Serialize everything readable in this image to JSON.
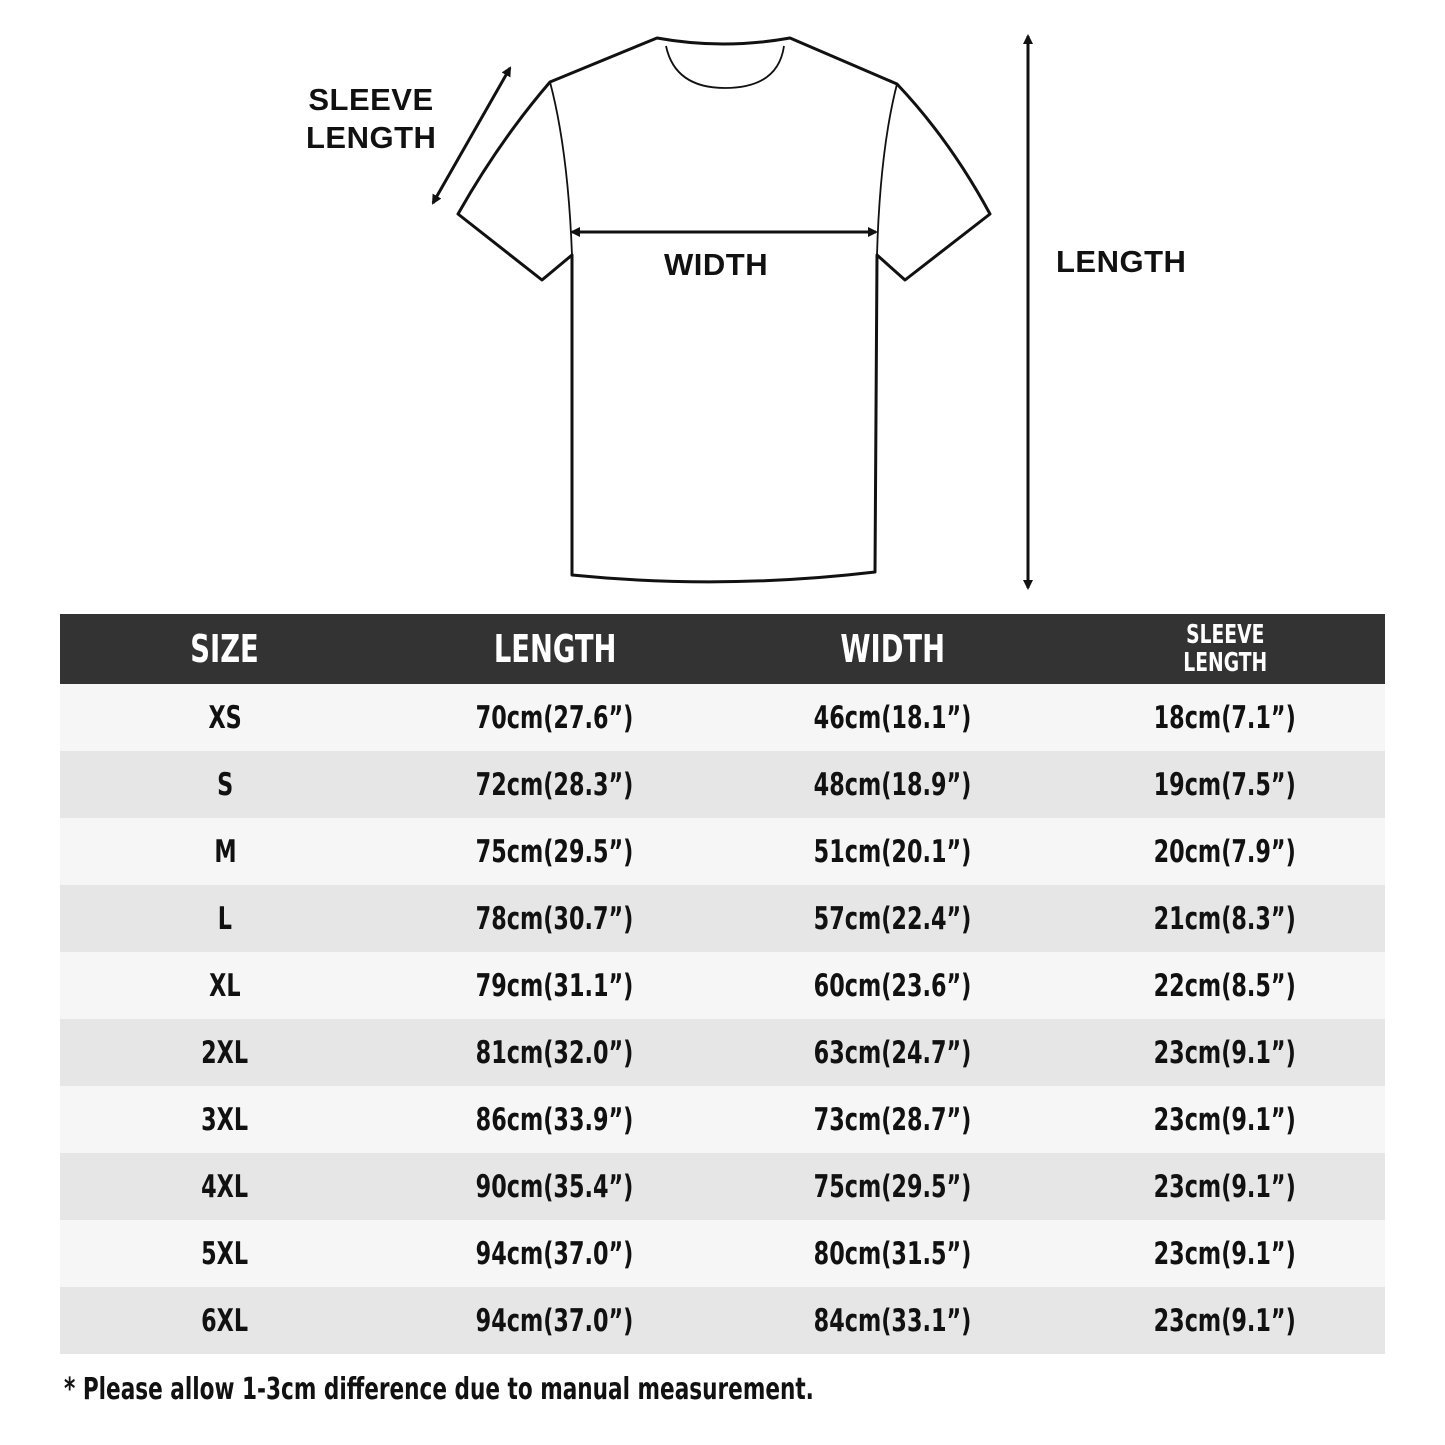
{
  "diagram": {
    "sleeve_label_line1": "SLEEVE",
    "sleeve_label_line2": "LENGTH",
    "width_label": "WIDTH",
    "length_label": "LENGTH"
  },
  "table": {
    "headers": [
      "SIZE",
      "LENGTH",
      "WIDTH",
      "SLEEVE LENGTH"
    ],
    "header_sleeve_line1": "SLEEVE",
    "header_sleeve_line2": "LENGTH",
    "rows": [
      [
        "XS",
        "70cm(27.6”)",
        "46cm(18.1”)",
        "18cm(7.1”)"
      ],
      [
        "S",
        "72cm(28.3”)",
        "48cm(18.9”)",
        "19cm(7.5”)"
      ],
      [
        "M",
        "75cm(29.5”)",
        "51cm(20.1”)",
        "20cm(7.9”)"
      ],
      [
        "L",
        "78cm(30.7”)",
        "57cm(22.4”)",
        "21cm(8.3”)"
      ],
      [
        "XL",
        "79cm(31.1”)",
        "60cm(23.6”)",
        "22cm(8.5”)"
      ],
      [
        "2XL",
        "81cm(32.0”)",
        "63cm(24.7”)",
        "23cm(9.1”)"
      ],
      [
        "3XL",
        "86cm(33.9”)",
        "73cm(28.7”)",
        "23cm(9.1”)"
      ],
      [
        "4XL",
        "90cm(35.4”)",
        "75cm(29.5”)",
        "23cm(9.1”)"
      ],
      [
        "5XL",
        "94cm(37.0”)",
        "80cm(31.5”)",
        "23cm(9.1”)"
      ],
      [
        "6XL",
        "94cm(37.0”)",
        "84cm(33.1”)",
        "23cm(9.1”)"
      ]
    ]
  },
  "footnote": "* Please allow 1-3cm difference due to manual measurement.",
  "colors": {
    "header_bg": "#333333",
    "row_light": "#f6f6f6",
    "row_dark": "#e6e6e6"
  }
}
